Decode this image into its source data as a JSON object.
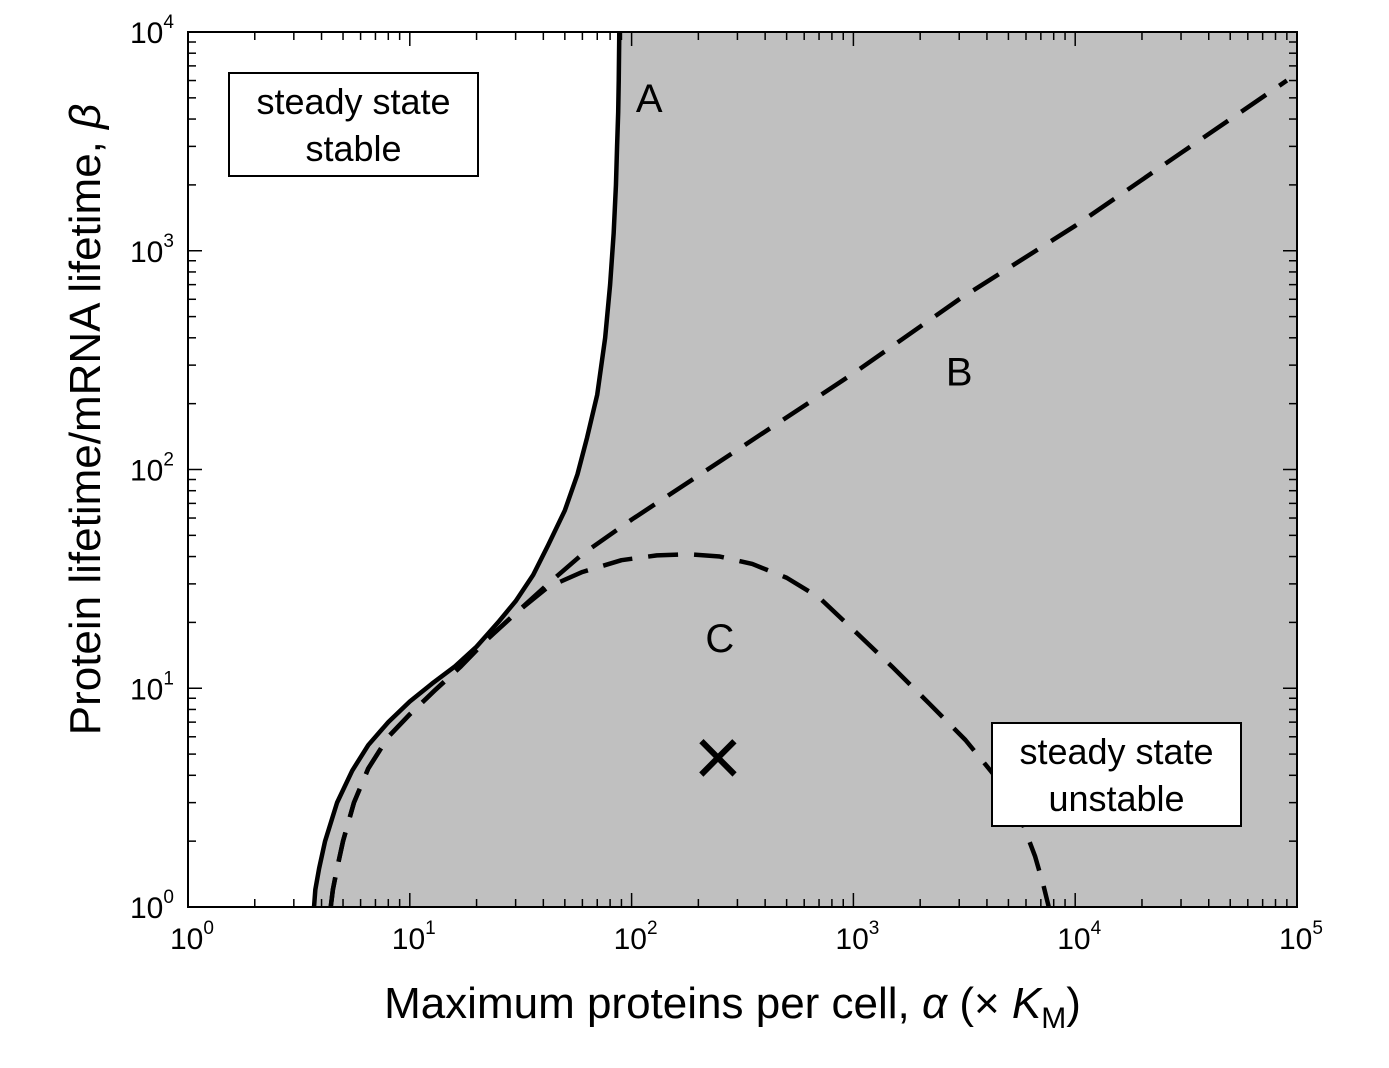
{
  "chart_data": {
    "type": "line",
    "xscale": "log",
    "yscale": "log",
    "xlim": [
      1,
      100000
    ],
    "ylim": [
      1,
      10000
    ],
    "x_ticks": [
      {
        "base": "10",
        "exp": "0",
        "value": 1
      },
      {
        "base": "10",
        "exp": "1",
        "value": 10
      },
      {
        "base": "10",
        "exp": "2",
        "value": 100
      },
      {
        "base": "10",
        "exp": "3",
        "value": 1000
      },
      {
        "base": "10",
        "exp": "4",
        "value": 10000
      },
      {
        "base": "10",
        "exp": "5",
        "value": 100000
      }
    ],
    "y_ticks": [
      {
        "base": "10",
        "exp": "0",
        "value": 1
      },
      {
        "base": "10",
        "exp": "1",
        "value": 10
      },
      {
        "base": "10",
        "exp": "2",
        "value": 100
      },
      {
        "base": "10",
        "exp": "3",
        "value": 1000
      },
      {
        "base": "10",
        "exp": "4",
        "value": 10000
      }
    ],
    "xlabel": {
      "text": "Maximum proteins per cell, ",
      "symbol": "α",
      "paren_open": " (× ",
      "var": "K",
      "sub": "M",
      "paren_close": ")"
    },
    "ylabel": {
      "text": "Protein lifetime/mRNA lifetime, ",
      "symbol": "β"
    },
    "grid": false,
    "shaded_region": {
      "color": "#c0c0c0",
      "bounded_by": "A"
    },
    "series": [
      {
        "name": "A",
        "style": "solid",
        "points": [
          [
            3.7,
            1
          ],
          [
            3.75,
            1.2
          ],
          [
            3.9,
            1.5
          ],
          [
            4.15,
            2
          ],
          [
            4.7,
            3
          ],
          [
            5.5,
            4.2
          ],
          [
            6.5,
            5.5
          ],
          [
            8,
            7
          ],
          [
            10,
            8.7
          ],
          [
            12.6,
            10.5
          ],
          [
            16,
            12.6
          ],
          [
            20,
            15.5
          ],
          [
            25,
            20
          ],
          [
            30,
            25
          ],
          [
            36,
            33
          ],
          [
            42,
            45
          ],
          [
            50,
            65
          ],
          [
            57,
            95
          ],
          [
            63,
            140
          ],
          [
            70,
            220
          ],
          [
            76,
            400
          ],
          [
            80,
            700
          ],
          [
            83,
            1200
          ],
          [
            85,
            2000
          ],
          [
            86,
            3000
          ],
          [
            87,
            4300
          ],
          [
            87.5,
            6000
          ],
          [
            88,
            10000
          ]
        ]
      },
      {
        "name": "B",
        "style": "dashed",
        "points": [
          [
            4.4,
            1
          ],
          [
            4.5,
            1.2
          ],
          [
            4.7,
            1.5
          ],
          [
            5,
            2
          ],
          [
            5.6,
            3
          ],
          [
            6.5,
            4.3
          ],
          [
            8,
            6
          ],
          [
            10,
            7.6
          ],
          [
            13,
            9.8
          ],
          [
            17,
            12.6
          ],
          [
            22,
            16.5
          ],
          [
            30,
            22
          ],
          [
            42,
            30
          ],
          [
            60,
            41
          ],
          [
            100,
            59
          ],
          [
            300,
            123
          ],
          [
            1000,
            275
          ],
          [
            3000,
            600
          ],
          [
            10000,
            1300
          ],
          [
            30000,
            2800
          ],
          [
            90000,
            6000
          ]
        ]
      },
      {
        "name": "C",
        "style": "dashed",
        "points": [
          [
            4.4,
            1
          ],
          [
            4.5,
            1.2
          ],
          [
            4.7,
            1.5
          ],
          [
            5,
            2
          ],
          [
            5.6,
            3
          ],
          [
            6.5,
            4.3
          ],
          [
            8,
            6
          ],
          [
            10,
            7.6
          ],
          [
            13,
            9.8
          ],
          [
            17,
            12.6
          ],
          [
            22,
            16.5
          ],
          [
            30,
            22
          ],
          [
            42,
            29
          ],
          [
            60,
            34
          ],
          [
            90,
            38.5
          ],
          [
            130,
            40.5
          ],
          [
            180,
            41
          ],
          [
            250,
            40
          ],
          [
            350,
            37
          ],
          [
            500,
            32
          ],
          [
            700,
            26
          ],
          [
            1000,
            18.5
          ],
          [
            1500,
            12.5
          ],
          [
            2200,
            8.5
          ],
          [
            3200,
            5.8
          ],
          [
            4500,
            3.8
          ],
          [
            5800,
            2.4
          ],
          [
            6600,
            1.7
          ],
          [
            7200,
            1.25
          ],
          [
            7600,
            1
          ]
        ]
      }
    ],
    "curve_labels": [
      {
        "text": "A",
        "x": 120,
        "y": 5000
      },
      {
        "text": "B",
        "x": 3000,
        "y": 280
      },
      {
        "text": "C",
        "x": 250,
        "y": 17
      }
    ],
    "marker": {
      "symbol": "×",
      "x": 245,
      "y": 4.6
    },
    "annotations": [
      {
        "id": "stable",
        "lines": [
          "steady state",
          "stable"
        ],
        "region": "top-left"
      },
      {
        "id": "unstable",
        "lines": [
          "steady state",
          "unstable"
        ],
        "region": "bottom-right"
      }
    ]
  }
}
